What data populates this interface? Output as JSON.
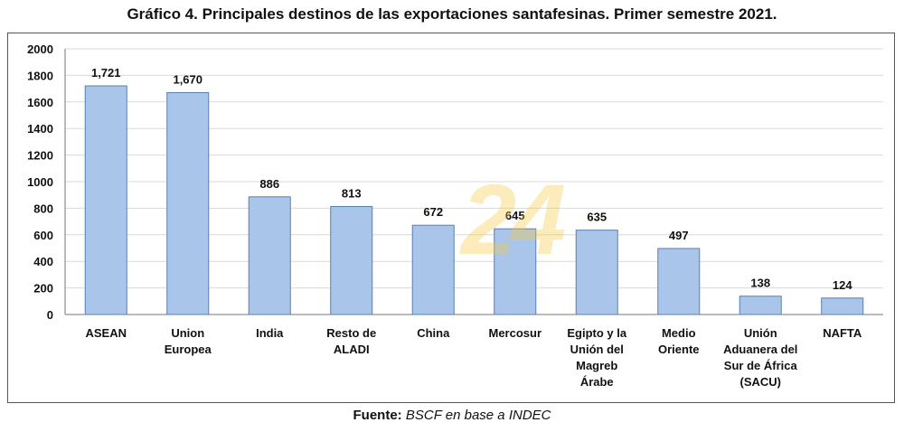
{
  "title": "Gráfico 4. Principales destinos de las exportaciones santafesinas. Primer semestre 2021.",
  "source": {
    "label": "Fuente:",
    "text": " BSCF en base a INDEC"
  },
  "watermark": "24",
  "colors": {
    "bar_fill": "#a9c6ea",
    "bar_stroke": "#5a7fb0",
    "grid": "#d9d9d9"
  },
  "chart_data": {
    "type": "bar",
    "categories": [
      [
        "ASEAN"
      ],
      [
        "Union",
        "Europea"
      ],
      [
        "India"
      ],
      [
        "Resto de",
        "ALADI"
      ],
      [
        "China"
      ],
      [
        "Mercosur"
      ],
      [
        "Egipto y la",
        "Unión del",
        "Magreb",
        "Árabe"
      ],
      [
        "Medio",
        "Oriente"
      ],
      [
        "Unión",
        "Aduanera del",
        "Sur de África",
        "(SACU)"
      ],
      [
        "NAFTA"
      ]
    ],
    "values": [
      1721,
      1670,
      886,
      813,
      672,
      645,
      635,
      497,
      138,
      124
    ],
    "data_labels": [
      "1,721",
      "1,670",
      "886",
      "813",
      "672",
      "645",
      "635",
      "497",
      "138",
      "124"
    ],
    "ylim": [
      0,
      2000
    ],
    "yticks": [
      0,
      200,
      400,
      600,
      800,
      1000,
      1200,
      1400,
      1600,
      1800,
      2000
    ],
    "grid": true
  }
}
